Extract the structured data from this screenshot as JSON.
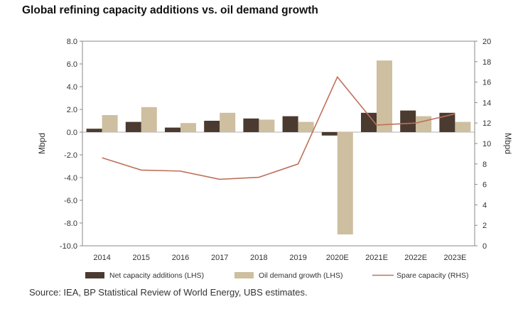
{
  "chart_data": {
    "type": "bar+line",
    "title": "Global refining capacity additions vs. oil demand growth",
    "categories": [
      "2014",
      "2015",
      "2016",
      "2017",
      "2018",
      "2019",
      "2020E",
      "2021E",
      "2022E",
      "2023E"
    ],
    "series": [
      {
        "name": "Net capacity additions (LHS)",
        "type": "bar",
        "axis": "left",
        "color": "#4b3a30",
        "values": [
          0.3,
          0.9,
          0.4,
          1.0,
          1.2,
          1.4,
          -0.3,
          1.7,
          1.9,
          1.7
        ]
      },
      {
        "name": "Oil demand growth (LHS)",
        "type": "bar",
        "axis": "left",
        "color": "#cdbf9f",
        "values": [
          1.5,
          2.2,
          0.8,
          1.7,
          1.1,
          0.9,
          -9.0,
          6.3,
          1.4,
          0.9
        ]
      },
      {
        "name": "Spare capacity (RHS)",
        "type": "line",
        "axis": "right",
        "color": "#c0705a",
        "values": [
          8.6,
          7.4,
          7.3,
          6.5,
          6.7,
          8.0,
          16.5,
          11.8,
          12.0,
          12.9
        ]
      }
    ],
    "ylabel_left": "Mbpd",
    "ylabel_right": "Mbpd",
    "ylim_left": [
      -10,
      8
    ],
    "ylim_right": [
      0,
      20
    ],
    "yticks_left": [
      "8.0",
      "6.0",
      "4.0",
      "2.0",
      "0.0",
      "-2.0",
      "-4.0",
      "-6.0",
      "-8.0",
      "-10.0"
    ],
    "yticks_right": [
      "20",
      "18",
      "16",
      "14",
      "12",
      "10",
      "8",
      "6",
      "4",
      "2",
      "0"
    ],
    "grid": false,
    "legend_position": "bottom"
  },
  "source_note": "Source: IEA, BP Statistical Review of World Energy, UBS estimates."
}
